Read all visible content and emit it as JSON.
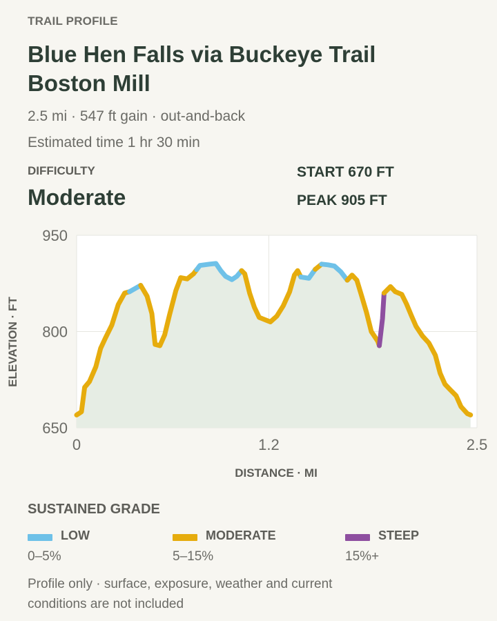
{
  "header": {
    "eyebrow": "TRAIL PROFILE",
    "title": "Blue Hen Falls via Buckeye Trail Boston Mill",
    "stats": "2.5 mi · 547 ft gain · out-and-back",
    "time": "Estimated time 1 hr 30 min"
  },
  "difficulty": {
    "label": "DIFFICULTY",
    "value": "Moderate"
  },
  "summary": {
    "start": "START 670 FT",
    "peak": "PEAK 905 FT"
  },
  "colors": {
    "low": "#6ec1e8",
    "moderate": "#e6ac0d",
    "steep": "#8e4fa0",
    "area": "#e6ede4"
  },
  "chart_data": {
    "type": "line",
    "xlabel": "DISTANCE · MI",
    "ylabel": "ELEVATION · FT",
    "xlim": [
      0,
      2.5
    ],
    "ylim": [
      650,
      950
    ],
    "x_ticks": [
      "0",
      "1.2",
      "2.5"
    ],
    "y_ticks": [
      "650",
      "800",
      "950"
    ],
    "grid": true,
    "series": [
      {
        "points": [
          [
            0.0,
            670
          ],
          [
            0.03,
            675
          ],
          [
            0.05,
            713
          ],
          [
            0.08,
            722
          ],
          [
            0.12,
            745
          ],
          [
            0.15,
            774
          ],
          [
            0.18,
            790
          ],
          [
            0.22,
            810
          ],
          [
            0.26,
            842
          ],
          [
            0.3,
            860
          ],
          [
            0.33,
            862
          ],
          [
            0.4,
            872
          ],
          [
            0.44,
            855
          ],
          [
            0.47,
            828
          ],
          [
            0.49,
            780
          ],
          [
            0.52,
            778
          ],
          [
            0.55,
            795
          ],
          [
            0.58,
            826
          ],
          [
            0.62,
            864
          ],
          [
            0.65,
            884
          ],
          [
            0.69,
            882
          ],
          [
            0.73,
            890
          ],
          [
            0.77,
            903
          ],
          [
            0.83,
            905
          ],
          [
            0.87,
            906
          ],
          [
            0.9,
            895
          ],
          [
            0.93,
            886
          ],
          [
            0.97,
            881
          ],
          [
            1.0,
            886
          ],
          [
            1.03,
            895
          ],
          [
            1.05,
            890
          ],
          [
            1.08,
            860
          ],
          [
            1.11,
            838
          ],
          [
            1.14,
            822
          ],
          [
            1.18,
            818
          ],
          [
            1.21,
            815
          ],
          [
            1.25,
            824
          ],
          [
            1.29,
            840
          ],
          [
            1.33,
            862
          ],
          [
            1.36,
            888
          ],
          [
            1.38,
            895
          ],
          [
            1.4,
            885
          ],
          [
            1.45,
            883
          ],
          [
            1.49,
            897
          ],
          [
            1.53,
            905
          ],
          [
            1.57,
            904
          ],
          [
            1.61,
            902
          ],
          [
            1.65,
            893
          ],
          [
            1.69,
            880
          ],
          [
            1.72,
            888
          ],
          [
            1.75,
            880
          ],
          [
            1.78,
            855
          ],
          [
            1.81,
            830
          ],
          [
            1.84,
            800
          ],
          [
            1.88,
            785
          ],
          [
            1.89,
            778
          ],
          [
            1.91,
            820
          ],
          [
            1.92,
            860
          ],
          [
            1.96,
            870
          ],
          [
            1.99,
            862
          ],
          [
            2.03,
            858
          ],
          [
            2.06,
            843
          ],
          [
            2.09,
            825
          ],
          [
            2.12,
            808
          ],
          [
            2.16,
            793
          ],
          [
            2.2,
            782
          ],
          [
            2.24,
            763
          ],
          [
            2.27,
            735
          ],
          [
            2.3,
            718
          ],
          [
            2.33,
            710
          ],
          [
            2.37,
            700
          ],
          [
            2.4,
            683
          ],
          [
            2.44,
            672
          ],
          [
            2.46,
            670
          ]
        ],
        "segments": [
          {
            "from": 0.0,
            "to": 0.33,
            "grade": "moderate"
          },
          {
            "from": 0.33,
            "to": 0.4,
            "grade": "low"
          },
          {
            "from": 0.4,
            "to": 0.75,
            "grade": "moderate"
          },
          {
            "from": 0.75,
            "to": 1.03,
            "grade": "low"
          },
          {
            "from": 1.03,
            "to": 1.4,
            "grade": "moderate"
          },
          {
            "from": 1.4,
            "to": 1.49,
            "grade": "low"
          },
          {
            "from": 1.49,
            "to": 1.53,
            "grade": "moderate"
          },
          {
            "from": 1.53,
            "to": 1.69,
            "grade": "low"
          },
          {
            "from": 1.69,
            "to": 1.89,
            "grade": "moderate"
          },
          {
            "from": 1.89,
            "to": 1.92,
            "grade": "steep"
          },
          {
            "from": 1.92,
            "to": 2.46,
            "grade": "moderate"
          }
        ]
      }
    ]
  },
  "legend": {
    "title": "SUSTAINED GRADE",
    "items": [
      {
        "key": "low",
        "name": "LOW",
        "range": "0–5%"
      },
      {
        "key": "moderate",
        "name": "MODERATE",
        "range": "5–15%"
      },
      {
        "key": "steep",
        "name": "STEEP",
        "range": "15%+"
      }
    ]
  },
  "footnote": "Profile only · surface, exposure, weather and current conditions are not included"
}
